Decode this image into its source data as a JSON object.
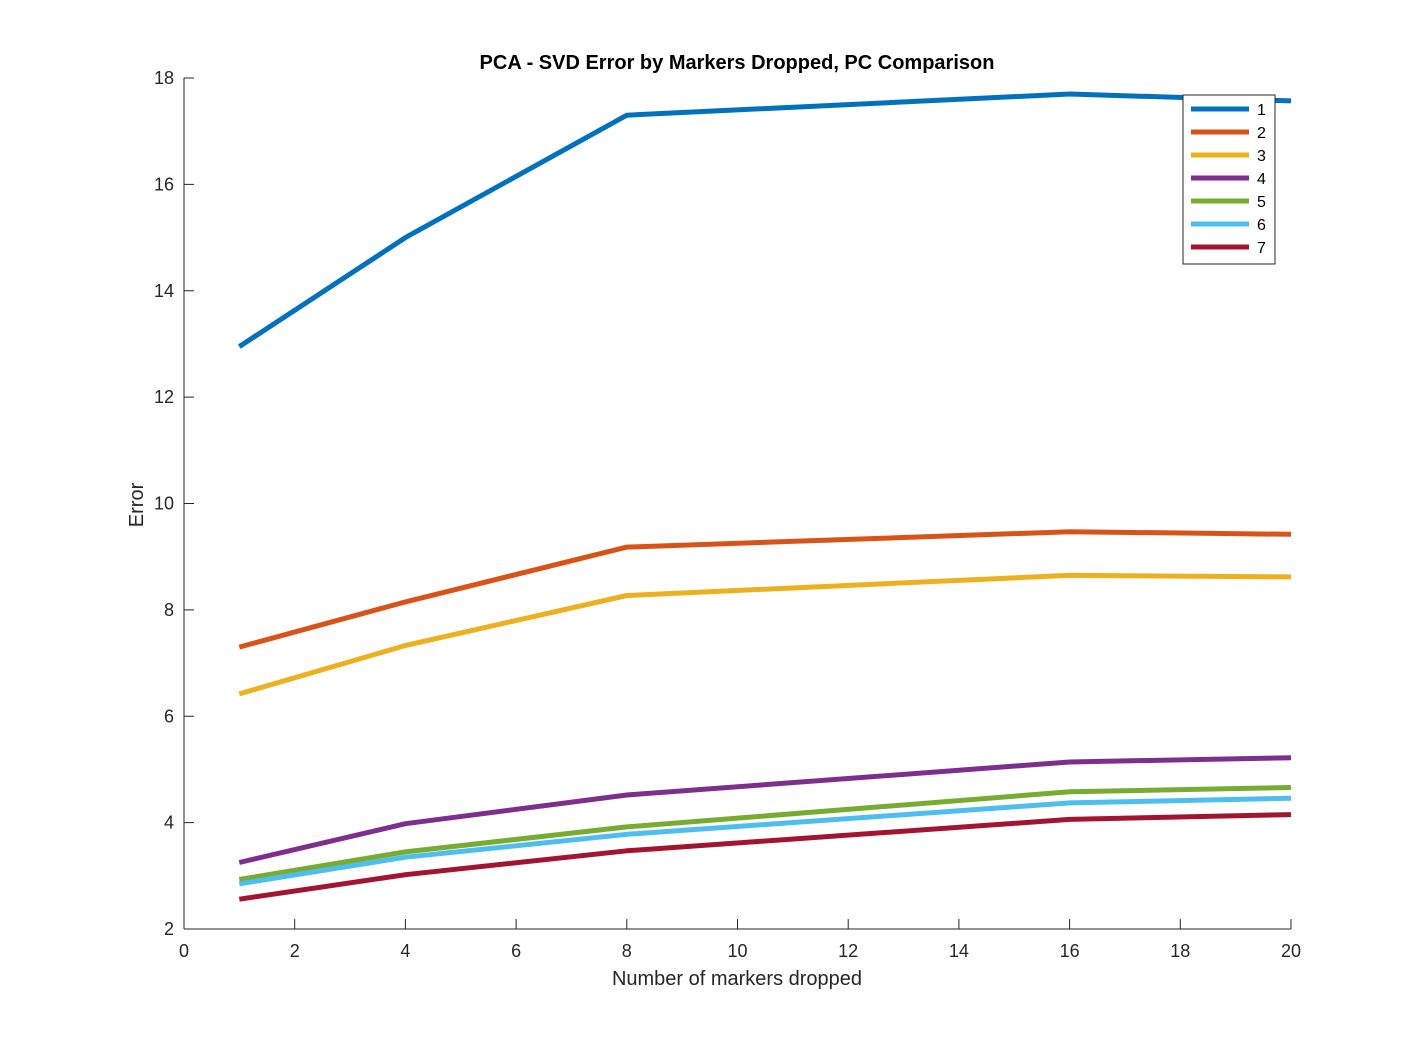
{
  "chart_data": {
    "type": "line",
    "title": "PCA - SVD Error by Markers Dropped, PC Comparison",
    "xlabel": "Number of markers dropped",
    "ylabel": "Error",
    "xlim": [
      0,
      20
    ],
    "ylim": [
      2,
      18
    ],
    "xticks": [
      0,
      2,
      4,
      6,
      8,
      10,
      12,
      14,
      16,
      18,
      20
    ],
    "yticks": [
      2,
      4,
      6,
      8,
      10,
      12,
      14,
      16,
      18
    ],
    "grid": false,
    "legend_position": "top-right",
    "x": [
      1,
      4,
      8,
      16,
      20
    ],
    "series": [
      {
        "name": "1",
        "color": "#0072BD",
        "values": [
          12.95,
          15.0,
          17.3,
          17.7,
          17.57
        ]
      },
      {
        "name": "2",
        "color": "#D95319",
        "values": [
          7.3,
          8.15,
          9.18,
          9.47,
          9.42
        ]
      },
      {
        "name": "3",
        "color": "#EDB120",
        "values": [
          6.42,
          7.33,
          8.27,
          8.65,
          8.62
        ]
      },
      {
        "name": "4",
        "color": "#7E2F8E",
        "values": [
          3.25,
          3.98,
          4.52,
          5.14,
          5.22
        ]
      },
      {
        "name": "5",
        "color": "#77AC30",
        "values": [
          2.93,
          3.45,
          3.92,
          4.58,
          4.66
        ]
      },
      {
        "name": "6",
        "color": "#4DBEEE",
        "values": [
          2.85,
          3.35,
          3.78,
          4.37,
          4.46
        ]
      },
      {
        "name": "7",
        "color": "#A2142F",
        "values": [
          2.56,
          3.02,
          3.47,
          4.06,
          4.15
        ]
      }
    ]
  }
}
